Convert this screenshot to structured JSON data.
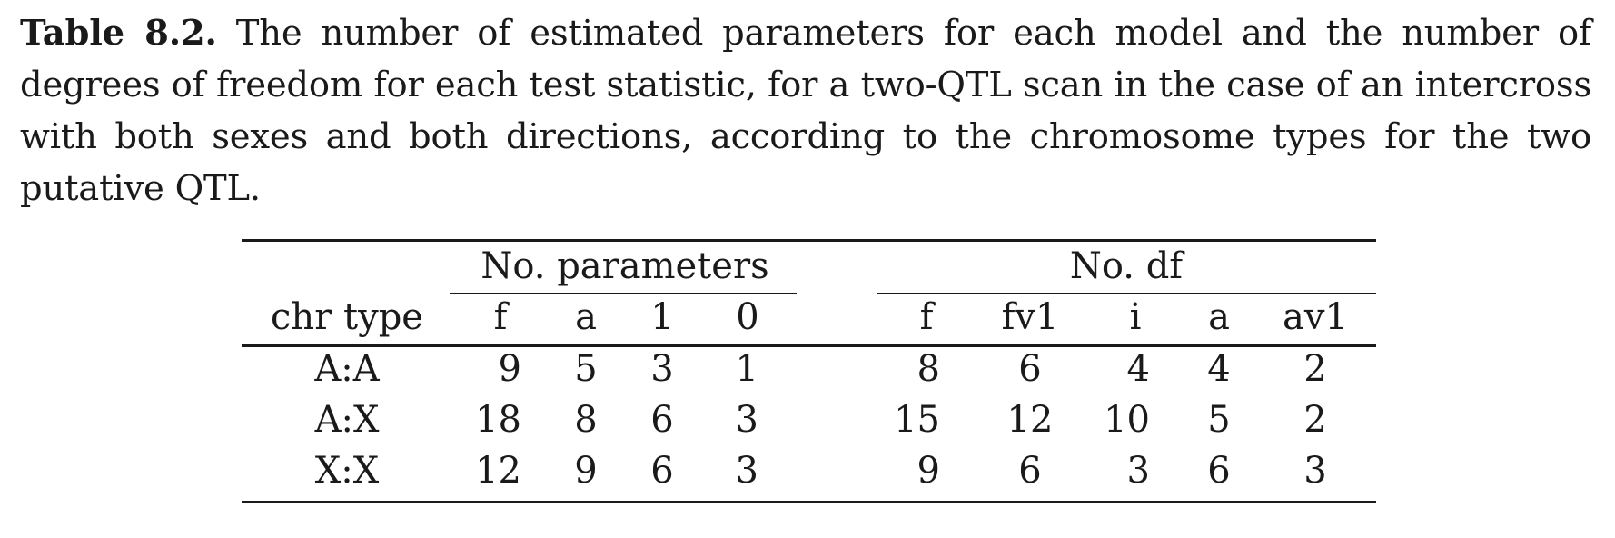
{
  "caption": {
    "label": "Table 8.2.",
    "text": "The number of estimated parameters for each model and the number of degrees of freedom for each test statistic, for a two-QTL scan in the case of an intercross with both sexes and both directions, according to the chromosome types for the two putative QTL."
  },
  "table": {
    "group_headers": {
      "params": "No. parameters",
      "df": "No. df"
    },
    "col_headers": {
      "chr": "chr type",
      "p_f": "f",
      "p_a": "a",
      "p_1": "1",
      "p_0": "0",
      "d_f": "f",
      "d_fv1": "fv1",
      "d_i": "i",
      "d_a": "a",
      "d_av1": "av1"
    },
    "rows": [
      {
        "chr": "A:A",
        "p_f": "9",
        "p_a": "5",
        "p_1": "3",
        "p_0": "1",
        "d_f": "8",
        "d_fv1": "6",
        "d_i": "4",
        "d_a": "4",
        "d_av1": "2"
      },
      {
        "chr": "A:X",
        "p_f": "18",
        "p_a": "8",
        "p_1": "6",
        "p_0": "3",
        "d_f": "15",
        "d_fv1": "12",
        "d_i": "10",
        "d_a": "5",
        "d_av1": "2"
      },
      {
        "chr": "X:X",
        "p_f": "12",
        "p_a": "9",
        "p_1": "6",
        "p_0": "3",
        "d_f": "9",
        "d_fv1": "6",
        "d_i": "3",
        "d_a": "6",
        "d_av1": "3"
      }
    ]
  }
}
